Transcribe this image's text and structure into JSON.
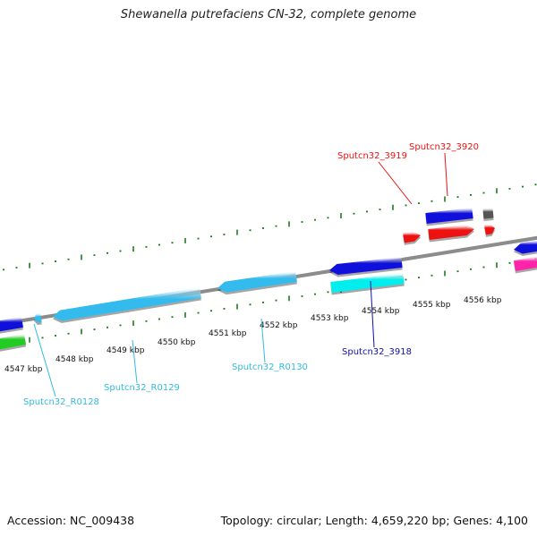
{
  "page": {
    "title": "Shewanella putrefaciens CN-32, complete genome",
    "accession": "Accession: NC_009438",
    "topology": "Topology: circular; Length: 4,659,220 bp; Genes: 4,100"
  },
  "colors": {
    "tick": "#1f7a1f",
    "genome_line": "#8c8c8c",
    "blue": "#1010dd",
    "light_blue": "#33bbee",
    "cyan": "#00eeee",
    "red": "#ee1111",
    "green": "#22cc22",
    "magenta": "#ff22aa",
    "gray": "#555555"
  },
  "scale_labels": [
    "4547 kbp",
    "4548 kbp",
    "4549 kbp",
    "4550 kbp",
    "4551 kbp",
    "4552 kbp",
    "4553 kbp",
    "4554 kbp",
    "4555 kbp",
    "4556 kbp"
  ],
  "gene_labels": [
    {
      "text": "Sputcn32_3919",
      "color": "#ee1111"
    },
    {
      "text": "Sputcn32_3920",
      "color": "#ee1111"
    },
    {
      "text": "Sputcn32_3918",
      "color": "#1010aa"
    },
    {
      "text": "Sputcn32_R0128",
      "color": "#33bbdd"
    },
    {
      "text": "Sputcn32_R0129",
      "color": "#33bbdd"
    },
    {
      "text": "Sputcn32_R0130",
      "color": "#33bbdd"
    }
  ]
}
